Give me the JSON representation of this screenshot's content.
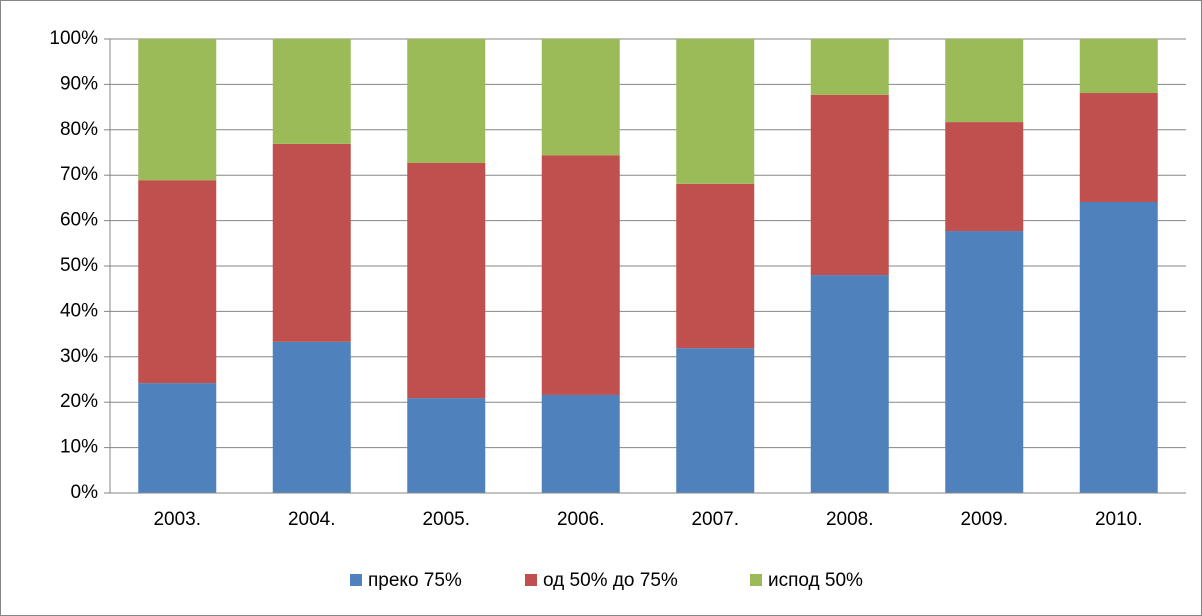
{
  "chart_data": {
    "type": "stacked_bar",
    "categories": [
      "2003.",
      "2004.",
      "2005.",
      "2006.",
      "2007.",
      "2008.",
      "2009.",
      "2010."
    ],
    "series": [
      {
        "name": "преко 75%",
        "color": "#4f81bd",
        "values": [
          24.2,
          33.3,
          20.9,
          21.6,
          31.9,
          48.0,
          57.7,
          64.1
        ]
      },
      {
        "name": "од 50% до 75%",
        "color": "#c0504d",
        "values": [
          44.7,
          43.6,
          51.8,
          52.8,
          36.2,
          39.7,
          24.0,
          24.0
        ]
      },
      {
        "name": "испод 50%",
        "color": "#9bbb59",
        "values": [
          31.1,
          23.1,
          27.3,
          25.6,
          31.9,
          12.3,
          18.3,
          11.9
        ]
      }
    ],
    "ylim": [
      0,
      100
    ],
    "yticks": [
      {
        "value": 0,
        "label": "0%"
      },
      {
        "value": 10,
        "label": "10%"
      },
      {
        "value": 20,
        "label": "20%"
      },
      {
        "value": 30,
        "label": "30%"
      },
      {
        "value": 40,
        "label": "40%"
      },
      {
        "value": 50,
        "label": "50%"
      },
      {
        "value": 60,
        "label": "60%"
      },
      {
        "value": 70,
        "label": "70%"
      },
      {
        "value": 80,
        "label": "80%"
      },
      {
        "value": 90,
        "label": "90%"
      },
      {
        "value": 100,
        "label": "100%"
      }
    ],
    "grid": true,
    "legend": "bottom"
  }
}
